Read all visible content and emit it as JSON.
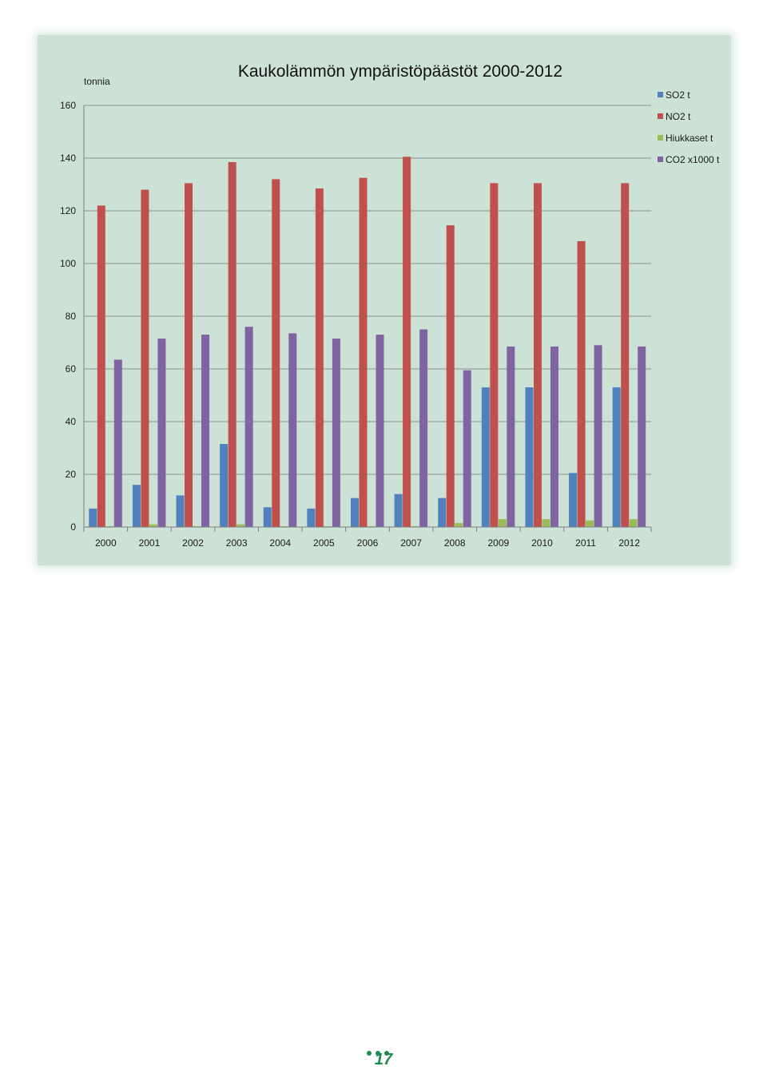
{
  "chart_data": {
    "type": "bar",
    "title": "Kaukolämmön ympäristöpäästöt  2000-2012",
    "ylabel": "tonnia",
    "xlabel": "",
    "ylim": [
      0,
      160
    ],
    "yticks": [
      0,
      20,
      40,
      60,
      80,
      100,
      120,
      140,
      160
    ],
    "grid": true,
    "legend_position": "right",
    "categories": [
      "2000",
      "2001",
      "2002",
      "2003",
      "2004",
      "2005",
      "2006",
      "2007",
      "2008",
      "2009",
      "2010",
      "2011",
      "2012"
    ],
    "series": [
      {
        "name": "SO2  t",
        "color": "#4f81bd",
        "values": [
          7,
          16,
          12,
          31.5,
          7.5,
          7,
          11,
          12.5,
          11,
          53,
          53,
          20.5,
          53
        ]
      },
      {
        "name": "NO2  t",
        "color": "#c0504d",
        "values": [
          122,
          128,
          130.5,
          138.5,
          132,
          128.5,
          132.5,
          140.5,
          114.5,
          130.5,
          130.5,
          108.5,
          130.5
        ]
      },
      {
        "name": "Hiukkaset  t",
        "color": "#9bbb59",
        "values": [
          0.3,
          1,
          0.3,
          1,
          0.3,
          0.3,
          0.3,
          0.3,
          1.5,
          3,
          3,
          2.5,
          3
        ]
      },
      {
        "name": "CO2  x1000  t",
        "color": "#8064a2",
        "values": [
          63.5,
          71.5,
          73,
          76,
          73.5,
          71.5,
          73,
          75,
          59.5,
          68.5,
          68.5,
          69,
          68.5
        ]
      }
    ]
  },
  "page": {
    "number": "17"
  }
}
